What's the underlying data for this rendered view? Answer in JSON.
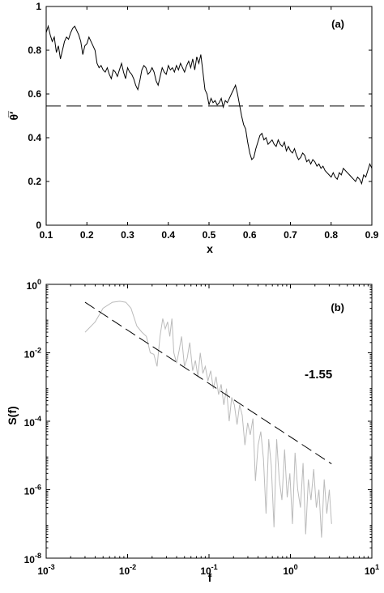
{
  "chart_data": [
    {
      "type": "line",
      "panel_label": "(a)",
      "xlabel": "x",
      "ylabel": "θ̅′",
      "xlim": [
        0.1,
        0.9
      ],
      "ylim": [
        0,
        1
      ],
      "xticks": [
        "0.1",
        "0.2",
        "0.3",
        "0.4",
        "0.5",
        "0.6",
        "0.7",
        "0.8",
        "0.9"
      ],
      "yticks": [
        "0",
        "0.2",
        "0.4",
        "0.6",
        "0.8",
        "1"
      ],
      "grid": false,
      "line_color": "#000000",
      "reference_line": {
        "y": 0.545,
        "style": "dashed"
      },
      "series": [
        {
          "x": [
            0.1,
            0.105,
            0.11,
            0.115,
            0.12,
            0.125,
            0.13,
            0.135,
            0.14,
            0.145,
            0.15,
            0.155,
            0.16,
            0.165,
            0.17,
            0.175,
            0.18,
            0.185,
            0.19,
            0.195,
            0.2,
            0.205,
            0.21,
            0.215,
            0.22,
            0.225,
            0.23,
            0.235,
            0.24,
            0.245,
            0.25,
            0.255,
            0.26,
            0.265,
            0.27,
            0.275,
            0.28,
            0.285,
            0.29,
            0.295,
            0.3,
            0.305,
            0.31,
            0.315,
            0.32,
            0.325,
            0.33,
            0.335,
            0.34,
            0.345,
            0.35,
            0.355,
            0.36,
            0.365,
            0.37,
            0.375,
            0.38,
            0.385,
            0.39,
            0.395,
            0.4,
            0.405,
            0.41,
            0.415,
            0.42,
            0.425,
            0.43,
            0.435,
            0.44,
            0.445,
            0.45,
            0.455,
            0.46,
            0.465,
            0.47,
            0.475,
            0.48,
            0.485,
            0.49,
            0.495,
            0.5,
            0.505,
            0.51,
            0.515,
            0.52,
            0.525,
            0.53,
            0.535,
            0.54,
            0.545,
            0.55,
            0.555,
            0.56,
            0.565,
            0.57,
            0.575,
            0.58,
            0.585,
            0.59,
            0.595,
            0.6,
            0.605,
            0.61,
            0.615,
            0.62,
            0.625,
            0.63,
            0.635,
            0.64,
            0.645,
            0.65,
            0.655,
            0.66,
            0.665,
            0.67,
            0.675,
            0.68,
            0.685,
            0.69,
            0.695,
            0.7,
            0.705,
            0.71,
            0.715,
            0.72,
            0.725,
            0.73,
            0.735,
            0.74,
            0.745,
            0.75,
            0.755,
            0.76,
            0.765,
            0.77,
            0.775,
            0.78,
            0.785,
            0.79,
            0.795,
            0.8,
            0.805,
            0.81,
            0.815,
            0.82,
            0.825,
            0.83,
            0.835,
            0.84,
            0.845,
            0.85,
            0.855,
            0.86,
            0.865,
            0.87,
            0.875,
            0.88,
            0.885,
            0.89,
            0.895,
            0.9
          ],
          "y": [
            0.88,
            0.91,
            0.87,
            0.84,
            0.86,
            0.79,
            0.82,
            0.76,
            0.8,
            0.84,
            0.86,
            0.85,
            0.88,
            0.9,
            0.91,
            0.89,
            0.87,
            0.84,
            0.78,
            0.82,
            0.83,
            0.86,
            0.84,
            0.82,
            0.8,
            0.74,
            0.72,
            0.73,
            0.71,
            0.7,
            0.72,
            0.69,
            0.67,
            0.71,
            0.7,
            0.68,
            0.71,
            0.74,
            0.7,
            0.67,
            0.72,
            0.7,
            0.69,
            0.67,
            0.64,
            0.62,
            0.66,
            0.71,
            0.73,
            0.72,
            0.69,
            0.7,
            0.72,
            0.7,
            0.66,
            0.64,
            0.68,
            0.72,
            0.7,
            0.69,
            0.73,
            0.71,
            0.72,
            0.7,
            0.73,
            0.71,
            0.74,
            0.72,
            0.7,
            0.73,
            0.75,
            0.72,
            0.76,
            0.71,
            0.77,
            0.74,
            0.78,
            0.7,
            0.62,
            0.6,
            0.55,
            0.58,
            0.56,
            0.57,
            0.55,
            0.56,
            0.58,
            0.54,
            0.57,
            0.56,
            0.58,
            0.6,
            0.62,
            0.64,
            0.6,
            0.55,
            0.5,
            0.46,
            0.44,
            0.38,
            0.33,
            0.3,
            0.31,
            0.35,
            0.38,
            0.41,
            0.42,
            0.39,
            0.4,
            0.37,
            0.38,
            0.39,
            0.37,
            0.36,
            0.39,
            0.37,
            0.36,
            0.38,
            0.34,
            0.36,
            0.34,
            0.33,
            0.35,
            0.32,
            0.3,
            0.31,
            0.33,
            0.32,
            0.29,
            0.3,
            0.28,
            0.3,
            0.29,
            0.27,
            0.28,
            0.26,
            0.27,
            0.25,
            0.24,
            0.23,
            0.22,
            0.24,
            0.22,
            0.21,
            0.24,
            0.23,
            0.26,
            0.25,
            0.24,
            0.23,
            0.22,
            0.21,
            0.2,
            0.22,
            0.21,
            0.19,
            0.23,
            0.22,
            0.25,
            0.28,
            0.26
          ]
        }
      ]
    },
    {
      "type": "line",
      "panel_label": "(b)",
      "xlabel": "f",
      "ylabel": "S(f)",
      "x_scale": "log",
      "y_scale": "log",
      "xlim": [
        0.001,
        10
      ],
      "ylim": [
        1e-08,
        1
      ],
      "xticks": [
        0.001,
        0.01,
        0.1,
        1,
        10
      ],
      "yticks": [
        1e-08,
        1e-06,
        0.0001,
        0.01,
        1
      ],
      "grid": false,
      "line_color": "#bbbbbb",
      "fit_line": {
        "slope_label": "-1.55",
        "slope": -1.55,
        "x": [
          0.003,
          3.2
        ],
        "y": [
          0.3,
          5.7e-06
        ],
        "style": "dashed"
      },
      "series": [
        {
          "x": [
            0.003,
            0.004,
            0.005,
            0.0065,
            0.008,
            0.0095,
            0.011,
            0.013,
            0.015,
            0.017,
            0.019,
            0.021,
            0.023,
            0.025,
            0.027,
            0.029,
            0.031,
            0.033,
            0.035,
            0.037,
            0.04,
            0.043,
            0.046,
            0.05,
            0.054,
            0.058,
            0.063,
            0.068,
            0.073,
            0.078,
            0.084,
            0.09,
            0.097,
            0.105,
            0.113,
            0.122,
            0.131,
            0.141,
            0.152,
            0.164,
            0.177,
            0.19,
            0.205,
            0.221,
            0.238,
            0.256,
            0.276,
            0.298,
            0.321,
            0.346,
            0.372,
            0.401,
            0.432,
            0.466,
            0.502,
            0.541,
            0.583,
            0.628,
            0.677,
            0.729,
            0.786,
            0.847,
            0.913,
            0.983,
            1.06,
            1.14,
            1.23,
            1.33,
            1.43,
            1.54,
            1.66,
            1.79,
            1.93,
            2.08,
            2.24,
            2.41,
            2.6,
            2.8,
            3.0,
            3.2
          ],
          "y": [
            0.04,
            0.08,
            0.2,
            0.3,
            0.32,
            0.3,
            0.2,
            0.06,
            0.04,
            0.03,
            0.01,
            0.009,
            0.004,
            0.03,
            0.1,
            0.05,
            0.08,
            0.03,
            0.1,
            0.01,
            0.005,
            0.012,
            0.03,
            0.004,
            0.007,
            0.02,
            0.003,
            0.006,
            0.002,
            0.01,
            0.0025,
            0.004,
            0.0015,
            0.003,
            0.0009,
            0.002,
            0.0006,
            0.0012,
            0.0003,
            0.0009,
            0.0001,
            0.0005,
            0.0003,
            8e-05,
            0.0003,
            0.00015,
            2e-05,
            9e-05,
            4e-05,
            0.00012,
            1.8e-06,
            2e-05,
            5e-05,
            8e-06,
            2e-07,
            3e-05,
            5e-06,
            8e-08,
            3e-05,
            2e-06,
            5e-07,
            1.5e-05,
            6e-07,
            3e-06,
            1e-07,
            1.2e-05,
            1e-06,
            3e-07,
            6e-06,
            5e-08,
            2e-06,
            5e-07,
            4e-06,
            3e-07,
            1e-06,
            4e-08,
            2e-06,
            2e-07,
            1e-06,
            1e-07
          ]
        }
      ]
    }
  ]
}
